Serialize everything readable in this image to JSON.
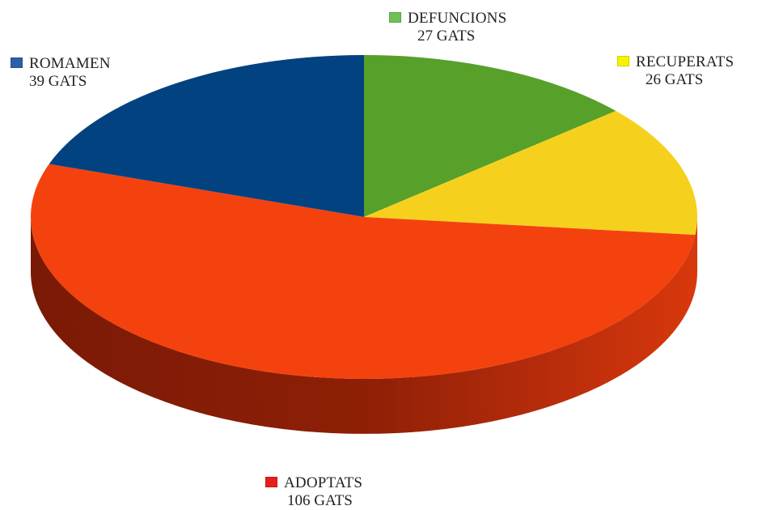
{
  "chart_data": {
    "type": "pie",
    "style": "3d",
    "slices": [
      {
        "label": "DEFUNCIONS",
        "value": 27,
        "value_label": "27 GATS",
        "color": "#57a02a",
        "swatch": "#6fbf56"
      },
      {
        "label": "RECUPERATS",
        "value": 26,
        "value_label": "26 GATS",
        "color": "#f5d11e",
        "swatch": "#f8f400"
      },
      {
        "label": "ADOPTATS",
        "value": 106,
        "value_label": "106 GATS",
        "color": "#f4420f",
        "swatch": "#e81d1d"
      },
      {
        "label": "ROMAMEN",
        "value": 39,
        "value_label": "39 GATS",
        "color": "#024281",
        "swatch": "#2c5fa8"
      }
    ]
  }
}
